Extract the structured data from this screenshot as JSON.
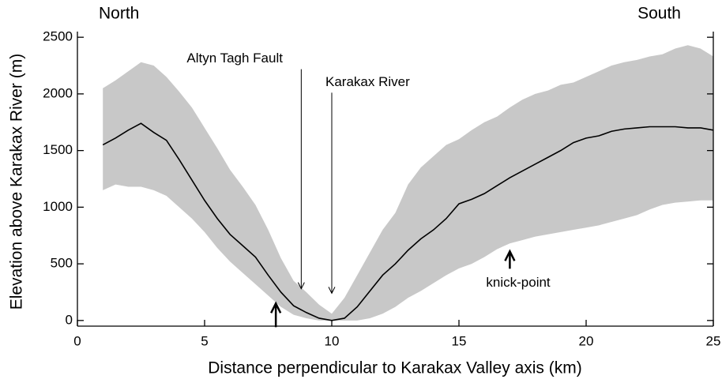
{
  "chart_data": {
    "type": "line",
    "xlabel": "Distance perpendicular to Karakax Valley axis (km)",
    "ylabel": "Elevation above Karakax River (m)",
    "corner_labels": [
      "North",
      "South"
    ],
    "x": [
      1,
      1.5,
      2,
      2.5,
      3,
      3.5,
      4,
      4.5,
      5,
      5.5,
      6,
      6.5,
      7,
      7.5,
      8,
      8.5,
      9,
      9.5,
      10,
      10.5,
      11,
      11.5,
      12,
      12.5,
      13,
      13.5,
      14,
      14.5,
      15,
      15.5,
      16,
      16.5,
      17,
      17.5,
      18,
      18.5,
      19,
      19.5,
      20,
      20.5,
      21,
      21.5,
      22,
      22.5,
      23,
      23.5,
      24,
      24.5,
      25
    ],
    "series": [
      {
        "color": "#000000",
        "values": [
          1550,
          1610,
          1680,
          1740,
          1660,
          1590,
          1420,
          1240,
          1060,
          900,
          760,
          660,
          560,
          400,
          250,
          130,
          70,
          20,
          0,
          20,
          120,
          260,
          400,
          500,
          620,
          720,
          800,
          900,
          1030,
          1070,
          1120,
          1190,
          1260,
          1320,
          1380,
          1440,
          1500,
          1570,
          1610,
          1630,
          1670,
          1690,
          1700,
          1710,
          1710,
          1710,
          1700,
          1700,
          1680
        ]
      }
    ],
    "band": {
      "color": "#c8c8c8",
      "lower": [
        1150,
        1200,
        1180,
        1180,
        1150,
        1100,
        1000,
        900,
        780,
        640,
        520,
        420,
        320,
        220,
        120,
        50,
        20,
        0,
        0,
        0,
        0,
        20,
        60,
        120,
        200,
        260,
        330,
        400,
        460,
        500,
        560,
        630,
        680,
        710,
        740,
        760,
        780,
        800,
        820,
        840,
        870,
        900,
        930,
        980,
        1020,
        1040,
        1050,
        1060,
        1060
      ],
      "upper": [
        2050,
        2120,
        2200,
        2280,
        2250,
        2150,
        2020,
        1880,
        1700,
        1520,
        1330,
        1180,
        1020,
        800,
        550,
        350,
        250,
        140,
        60,
        200,
        400,
        600,
        800,
        950,
        1200,
        1350,
        1450,
        1550,
        1600,
        1680,
        1750,
        1800,
        1880,
        1950,
        2000,
        2030,
        2080,
        2100,
        2150,
        2200,
        2250,
        2280,
        2300,
        2330,
        2350,
        2400,
        2430,
        2400,
        2330
      ]
    },
    "annotations": [
      {
        "text": "Altyn Tagh Fault",
        "x": 8.8,
        "y": 280
      },
      {
        "text": "Karakax River",
        "x": 10,
        "y": 240
      },
      {
        "text": "knick-point",
        "x": 17,
        "y": 610
      },
      {
        "x": 7.8,
        "y": 150
      }
    ],
    "xlim": [
      0,
      25
    ],
    "xticks": [
      0,
      5,
      10,
      15,
      20,
      25
    ],
    "ylim": [
      -50,
      2550
    ],
    "yticks": [
      0,
      500,
      1000,
      1500,
      2000,
      2500
    ]
  }
}
